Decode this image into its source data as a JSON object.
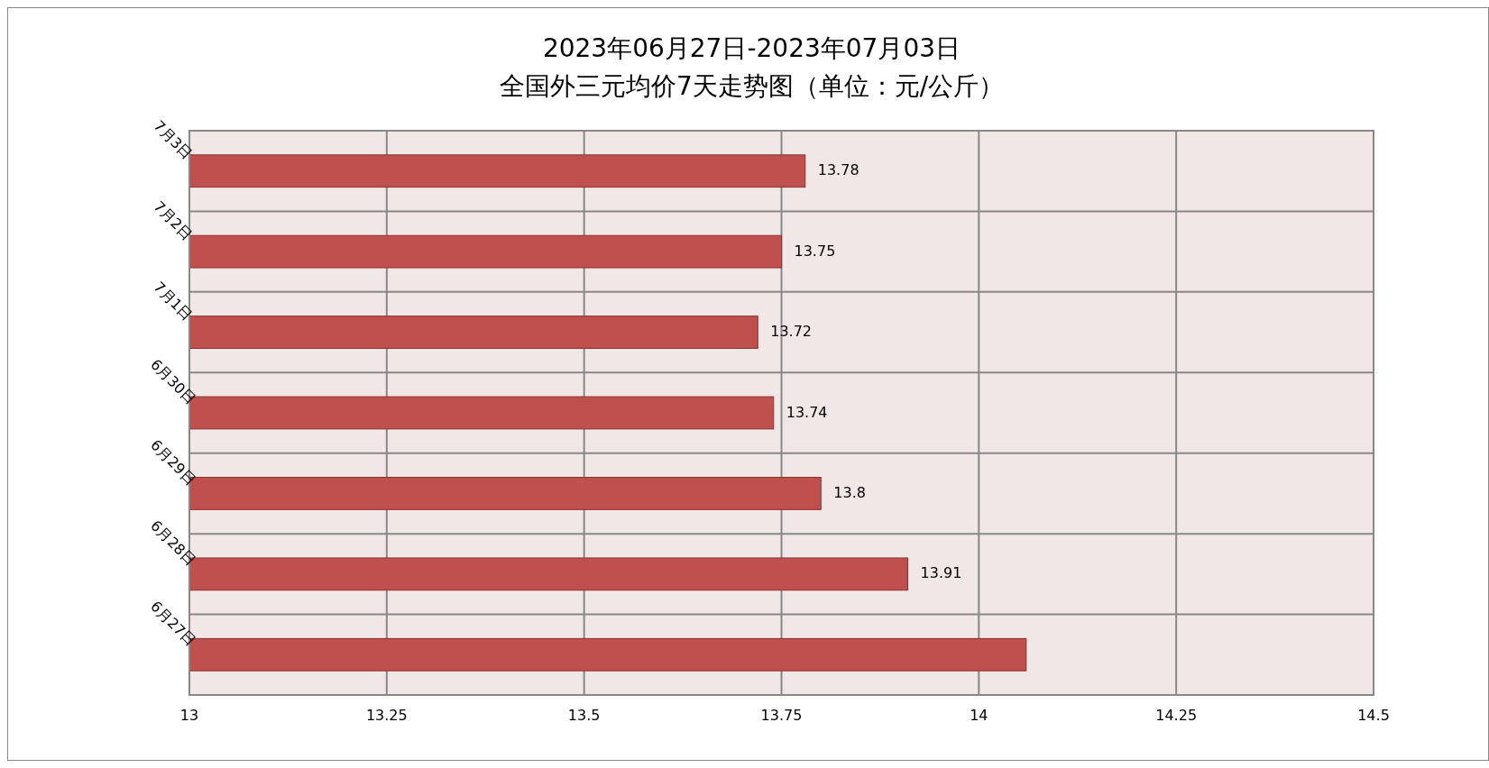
{
  "chart_data": {
    "type": "bar",
    "orientation": "horizontal",
    "title": "2023年06月27日-2023年07月03日",
    "subtitle": "全国外三元均价7天走势图（单位：元/公斤）",
    "categories": [
      "7月3日",
      "7月2日",
      "7月1日",
      "6月30日",
      "6月29日",
      "6月28日",
      "6月27日"
    ],
    "values": [
      13.78,
      13.75,
      13.72,
      13.74,
      13.8,
      13.91,
      14.06
    ],
    "value_labels": [
      "13.78",
      "13.75",
      "13.72",
      "13.74",
      "13.8",
      "13.91",
      null
    ],
    "color": "#c0504d",
    "xlim": [
      13,
      14.5
    ],
    "xticks": [
      13,
      13.25,
      13.5,
      13.75,
      14,
      14.25,
      14.5
    ],
    "grid": true
  }
}
